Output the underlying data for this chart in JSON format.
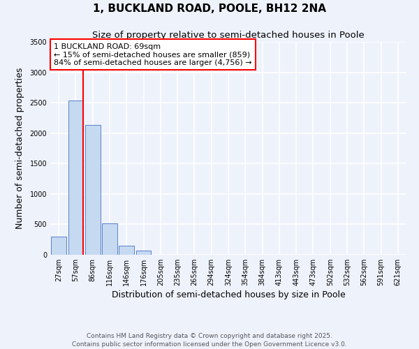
{
  "title": "1, BUCKLAND ROAD, POOLE, BH12 2NA",
  "subtitle": "Size of property relative to semi-detached houses in Poole",
  "xlabel": "Distribution of semi-detached houses by size in Poole",
  "ylabel": "Number of semi-detached properties",
  "bar_labels": [
    "27sqm",
    "57sqm",
    "86sqm",
    "116sqm",
    "146sqm",
    "176sqm",
    "205sqm",
    "235sqm",
    "265sqm",
    "294sqm",
    "324sqm",
    "354sqm",
    "384sqm",
    "413sqm",
    "443sqm",
    "473sqm",
    "502sqm",
    "532sqm",
    "562sqm",
    "591sqm",
    "621sqm"
  ],
  "bar_values": [
    300,
    2540,
    2130,
    520,
    145,
    65,
    0,
    0,
    0,
    0,
    0,
    0,
    0,
    0,
    0,
    0,
    0,
    0,
    0,
    0,
    0
  ],
  "bar_color": "#c5d9f1",
  "bar_edge_color": "#4472c4",
  "background_color": "#eef2fb",
  "grid_color": "#ffffff",
  "annotation_label": "1 BUCKLAND ROAD: 69sqm",
  "annotation_line1": "← 15% of semi-detached houses are smaller (859)",
  "annotation_line2": "84% of semi-detached houses are larger (4,756) →",
  "vline_x_index": 1.42,
  "ylim": [
    0,
    3500
  ],
  "yticks": [
    0,
    500,
    1000,
    1500,
    2000,
    2500,
    3000,
    3500
  ],
  "footer1": "Contains HM Land Registry data © Crown copyright and database right 2025.",
  "footer2": "Contains public sector information licensed under the Open Government Licence v3.0.",
  "title_fontsize": 11,
  "subtitle_fontsize": 9.5,
  "axis_label_fontsize": 9,
  "tick_fontsize": 7,
  "annotation_fontsize": 8,
  "footer_fontsize": 6.5
}
